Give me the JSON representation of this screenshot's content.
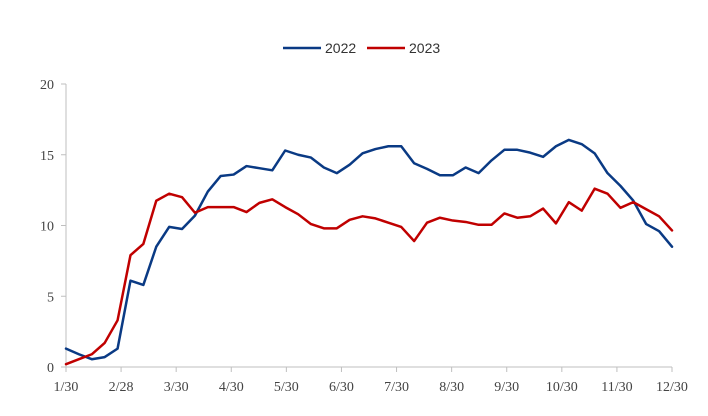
{
  "chart_data": {
    "type": "line",
    "title": "",
    "xlabel": "",
    "ylabel": "",
    "ylim": [
      0,
      20
    ],
    "yticks": [
      "0",
      "5",
      "10",
      "15",
      "20"
    ],
    "xticks": [
      "1/30",
      "2/28",
      "3/30",
      "4/30",
      "5/30",
      "6/30",
      "7/30",
      "8/30",
      "9/30",
      "10/30",
      "11/30",
      "12/30"
    ],
    "grid": false,
    "legend": "top-center",
    "series": [
      {
        "name": "2022",
        "color": "#0a3a84",
        "values": [
          1.3,
          0.9,
          0.55,
          0.7,
          1.3,
          6.1,
          5.8,
          8.5,
          9.9,
          9.75,
          10.7,
          12.4,
          13.5,
          13.6,
          14.2,
          14.05,
          13.9,
          15.3,
          15.0,
          14.8,
          14.1,
          13.7,
          14.3,
          15.1,
          15.4,
          15.6,
          15.6,
          14.4,
          14.0,
          13.55,
          13.55,
          14.1,
          13.7,
          14.6,
          15.35,
          15.35,
          15.15,
          14.85,
          15.6,
          16.05,
          15.75,
          15.1,
          13.7,
          12.8,
          11.75,
          10.1,
          9.6,
          8.5
        ]
      },
      {
        "name": "2023",
        "color": "#c00000",
        "values": [
          0.2,
          0.55,
          0.9,
          1.7,
          3.3,
          7.9,
          8.7,
          11.75,
          12.25,
          12.0,
          10.9,
          11.3,
          11.3,
          11.3,
          10.95,
          11.6,
          11.85,
          11.3,
          10.8,
          10.1,
          9.8,
          9.8,
          10.4,
          10.65,
          10.5,
          10.2,
          9.9,
          8.9,
          10.2,
          10.55,
          10.35,
          10.25,
          10.05,
          10.05,
          10.85,
          10.55,
          10.65,
          11.2,
          10.15,
          11.65,
          11.05,
          12.6,
          12.25,
          11.25,
          11.65,
          11.15,
          10.65,
          9.65
        ]
      }
    ]
  }
}
